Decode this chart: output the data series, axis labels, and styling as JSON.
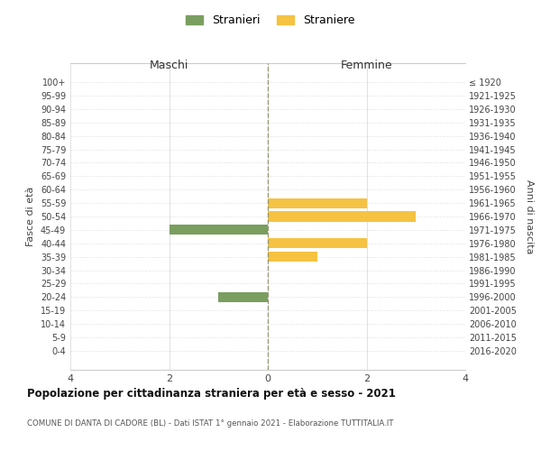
{
  "age_groups": [
    "100+",
    "95-99",
    "90-94",
    "85-89",
    "80-84",
    "75-79",
    "70-74",
    "65-69",
    "60-64",
    "55-59",
    "50-54",
    "45-49",
    "40-44",
    "35-39",
    "30-34",
    "25-29",
    "20-24",
    "15-19",
    "10-14",
    "5-9",
    "0-4"
  ],
  "birth_years": [
    "≤ 1920",
    "1921-1925",
    "1926-1930",
    "1931-1935",
    "1936-1940",
    "1941-1945",
    "1946-1950",
    "1951-1955",
    "1956-1960",
    "1961-1965",
    "1966-1970",
    "1971-1975",
    "1976-1980",
    "1981-1985",
    "1986-1990",
    "1991-1995",
    "1996-2000",
    "2001-2005",
    "2006-2010",
    "2011-2015",
    "2016-2020"
  ],
  "maschi": [
    0,
    0,
    0,
    0,
    0,
    0,
    0,
    0,
    0,
    0,
    0,
    2,
    0,
    0,
    0,
    0,
    1,
    0,
    0,
    0,
    0
  ],
  "femmine": [
    0,
    0,
    0,
    0,
    0,
    0,
    0,
    0,
    0,
    2,
    3,
    0,
    2,
    1,
    0,
    0,
    0,
    0,
    0,
    0,
    0
  ],
  "color_maschi": "#7A9E5F",
  "color_femmine": "#F5C242",
  "title": "Popolazione per cittadinanza straniera per età e sesso - 2021",
  "subtitle": "COMUNE DI DANTA DI CADORE (BL) - Dati ISTAT 1° gennaio 2021 - Elaborazione TUTTITALIA.IT",
  "xlabel_left": "Maschi",
  "xlabel_right": "Femmine",
  "ylabel_left": "Fasce di età",
  "ylabel_right": "Anni di nascita",
  "legend_maschi": "Stranieri",
  "legend_femmine": "Straniere",
  "xlim": 4,
  "background_color": "#FFFFFF",
  "grid_color": "#CCCCCC",
  "grid_color_y": "#DDDDDD",
  "axis_color": "#999977",
  "bar_height": 0.75
}
